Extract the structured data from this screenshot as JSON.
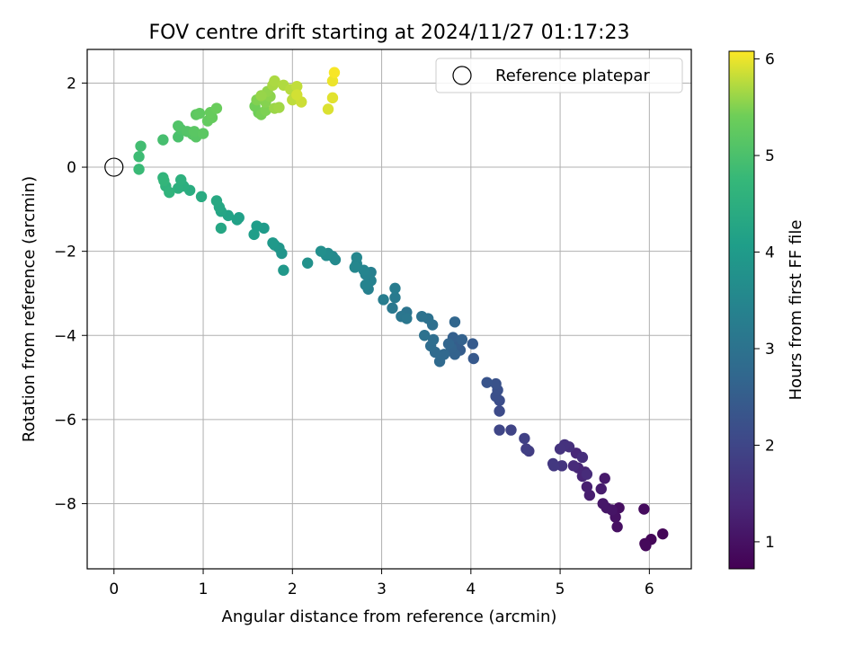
{
  "chart_data": {
    "type": "scatter",
    "title": "FOV centre drift starting at 2024/11/27 01:17:23",
    "xlabel": "Angular distance from reference (arcmin)",
    "ylabel": "Rotation from reference (arcmin)",
    "xlim": [
      -0.3,
      6.47
    ],
    "ylim": [
      -9.55,
      2.8
    ],
    "xticks": [
      0,
      1,
      2,
      3,
      4,
      5,
      6
    ],
    "yticks": [
      -8,
      -6,
      -4,
      -2,
      0,
      2
    ],
    "grid": true,
    "legend": {
      "placement": "top-right",
      "entries": [
        "Reference platepar"
      ]
    },
    "reference_point": {
      "x": 0,
      "y": 0
    },
    "colorbar": {
      "label": "Hours from first FF file",
      "colormap": "viridis",
      "range": [
        0.72,
        6.08
      ],
      "ticks": [
        1,
        2,
        3,
        4,
        5,
        6
      ]
    },
    "points": [
      [
        6.15,
        -8.72,
        0.8
      ],
      [
        6.02,
        -8.85,
        0.82
      ],
      [
        5.95,
        -8.95,
        0.84
      ],
      [
        5.96,
        -9.0,
        0.85
      ],
      [
        5.94,
        -8.13,
        0.9
      ],
      [
        5.66,
        -8.1,
        0.95
      ],
      [
        5.64,
        -8.55,
        0.98
      ],
      [
        5.62,
        -8.32,
        1.0
      ],
      [
        5.58,
        -8.15,
        1.05
      ],
      [
        5.52,
        -8.1,
        1.08
      ],
      [
        5.48,
        -8.0,
        1.1
      ],
      [
        5.5,
        -7.4,
        1.15
      ],
      [
        5.46,
        -7.65,
        1.18
      ],
      [
        5.33,
        -7.8,
        1.22
      ],
      [
        5.3,
        -7.6,
        1.25
      ],
      [
        5.28,
        -7.25,
        1.3
      ],
      [
        5.25,
        -7.35,
        1.35
      ],
      [
        5.2,
        -7.15,
        1.38
      ],
      [
        5.18,
        -6.8,
        1.4
      ],
      [
        5.15,
        -7.1,
        1.45
      ],
      [
        5.3,
        -7.3,
        1.48
      ],
      [
        5.25,
        -6.9,
        1.52
      ],
      [
        5.1,
        -6.65,
        1.55
      ],
      [
        5.05,
        -6.6,
        1.6
      ],
      [
        5.0,
        -6.7,
        1.62
      ],
      [
        5.02,
        -7.1,
        1.65
      ],
      [
        4.92,
        -7.05,
        1.7
      ],
      [
        4.93,
        -7.1,
        1.72
      ],
      [
        4.65,
        -6.75,
        1.8
      ],
      [
        4.62,
        -6.7,
        1.85
      ],
      [
        4.6,
        -6.45,
        1.9
      ],
      [
        4.45,
        -6.25,
        1.95
      ],
      [
        4.32,
        -6.25,
        2.0
      ],
      [
        4.32,
        -5.8,
        2.1
      ],
      [
        4.32,
        -5.55,
        2.15
      ],
      [
        4.28,
        -5.45,
        2.2
      ],
      [
        4.3,
        -5.3,
        2.22
      ],
      [
        4.28,
        -5.15,
        2.25
      ],
      [
        4.18,
        -5.12,
        2.3
      ],
      [
        4.03,
        -4.55,
        2.4
      ],
      [
        4.02,
        -4.2,
        2.45
      ],
      [
        3.88,
        -4.35,
        2.5
      ],
      [
        3.85,
        -4.2,
        2.52
      ],
      [
        3.8,
        -4.05,
        2.55
      ],
      [
        3.9,
        -4.1,
        2.6
      ],
      [
        3.82,
        -4.45,
        2.62
      ],
      [
        3.78,
        -4.3,
        2.65
      ],
      [
        3.75,
        -4.2,
        2.68
      ],
      [
        3.82,
        -3.68,
        2.7
      ],
      [
        3.7,
        -4.45,
        2.75
      ],
      [
        3.65,
        -4.62,
        2.78
      ],
      [
        3.6,
        -4.4,
        2.8
      ],
      [
        3.55,
        -4.25,
        2.85
      ],
      [
        3.58,
        -4.1,
        2.88
      ],
      [
        3.57,
        -3.75,
        2.9
      ],
      [
        3.52,
        -3.6,
        2.95
      ],
      [
        3.48,
        -4.0,
        2.98
      ],
      [
        3.45,
        -3.55,
        3.0
      ],
      [
        3.28,
        -3.45,
        3.05
      ],
      [
        3.22,
        -3.55,
        3.1
      ],
      [
        3.28,
        -3.6,
        3.12
      ],
      [
        3.12,
        -3.35,
        3.15
      ],
      [
        3.15,
        -3.1,
        3.2
      ],
      [
        3.15,
        -2.88,
        3.25
      ],
      [
        3.02,
        -3.15,
        3.28
      ],
      [
        2.88,
        -2.5,
        3.32
      ],
      [
        2.85,
        -2.9,
        3.35
      ],
      [
        2.88,
        -2.7,
        3.38
      ],
      [
        2.82,
        -2.55,
        3.4
      ],
      [
        2.82,
        -2.8,
        3.42
      ],
      [
        2.8,
        -2.45,
        3.45
      ],
      [
        2.72,
        -2.3,
        3.48
      ],
      [
        2.72,
        -2.15,
        3.5
      ],
      [
        2.7,
        -2.38,
        3.52
      ],
      [
        2.45,
        -2.12,
        3.55
      ],
      [
        2.48,
        -2.2,
        3.58
      ],
      [
        2.4,
        -2.05,
        3.62
      ],
      [
        2.38,
        -2.1,
        3.65
      ],
      [
        2.32,
        -2.0,
        3.7
      ],
      [
        2.17,
        -2.28,
        3.75
      ],
      [
        1.88,
        -2.05,
        3.85
      ],
      [
        1.85,
        -1.92,
        3.88
      ],
      [
        1.8,
        -1.85,
        3.9
      ],
      [
        1.9,
        -2.45,
        3.92
      ],
      [
        1.78,
        -1.8,
        3.95
      ],
      [
        1.68,
        -1.45,
        4.0
      ],
      [
        1.6,
        -1.4,
        4.05
      ],
      [
        1.57,
        -1.6,
        4.08
      ],
      [
        1.4,
        -1.2,
        4.12
      ],
      [
        1.38,
        -1.25,
        4.15
      ],
      [
        1.28,
        -1.15,
        4.2
      ],
      [
        1.2,
        -1.05,
        4.25
      ],
      [
        1.2,
        -1.45,
        4.28
      ],
      [
        1.18,
        -0.95,
        4.3
      ],
      [
        1.15,
        -0.8,
        4.35
      ],
      [
        0.98,
        -0.7,
        4.4
      ],
      [
        0.85,
        -0.55,
        4.45
      ],
      [
        0.78,
        -0.45,
        4.5
      ],
      [
        0.72,
        -0.5,
        4.52
      ],
      [
        0.75,
        -0.3,
        4.55
      ],
      [
        0.58,
        -0.45,
        4.6
      ],
      [
        0.62,
        -0.6,
        4.62
      ],
      [
        0.55,
        -0.25,
        4.65
      ],
      [
        0.56,
        -0.32,
        4.68
      ],
      [
        0.28,
        -0.05,
        4.8
      ],
      [
        0.28,
        0.25,
        4.85
      ],
      [
        0.3,
        0.5,
        4.9
      ],
      [
        0.55,
        0.65,
        4.95
      ],
      [
        0.72,
        0.72,
        5.0
      ],
      [
        0.75,
        0.9,
        5.05
      ],
      [
        0.72,
        0.98,
        5.08
      ],
      [
        0.82,
        0.85,
        5.1
      ],
      [
        0.88,
        0.78,
        5.12
      ],
      [
        0.92,
        0.72,
        5.15
      ],
      [
        0.9,
        0.85,
        5.18
      ],
      [
        1.0,
        0.8,
        5.2
      ],
      [
        0.92,
        1.25,
        5.22
      ],
      [
        0.96,
        1.28,
        5.25
      ],
      [
        1.05,
        1.1,
        5.28
      ],
      [
        1.1,
        1.18,
        5.3
      ],
      [
        1.08,
        1.3,
        5.32
      ],
      [
        1.15,
        1.4,
        5.35
      ],
      [
        1.62,
        1.3,
        5.4
      ],
      [
        1.58,
        1.45,
        5.42
      ],
      [
        1.65,
        1.25,
        5.45
      ],
      [
        1.7,
        1.35,
        5.48
      ],
      [
        1.6,
        1.6,
        5.5
      ],
      [
        1.7,
        1.55,
        5.52
      ],
      [
        1.75,
        1.68,
        5.55
      ],
      [
        1.72,
        1.8,
        5.58
      ],
      [
        1.65,
        1.7,
        5.6
      ],
      [
        1.8,
        1.4,
        5.62
      ],
      [
        1.85,
        1.42,
        5.65
      ],
      [
        1.78,
        1.95,
        5.68
      ],
      [
        1.8,
        2.05,
        5.7
      ],
      [
        1.9,
        1.95,
        5.72
      ],
      [
        1.98,
        1.85,
        5.75
      ],
      [
        2.0,
        1.6,
        5.78
      ],
      [
        2.05,
        1.92,
        5.8
      ],
      [
        2.1,
        1.55,
        5.85
      ],
      [
        2.05,
        1.72,
        5.88
      ],
      [
        2.4,
        1.38,
        5.92
      ],
      [
        2.45,
        1.65,
        5.95
      ],
      [
        2.45,
        2.05,
        6.0
      ],
      [
        2.47,
        2.25,
        6.05
      ]
    ]
  }
}
